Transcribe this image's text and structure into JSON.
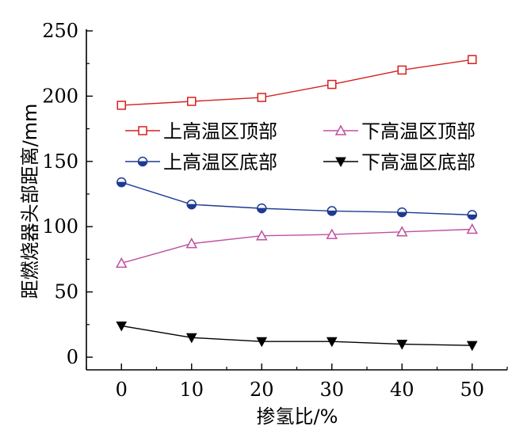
{
  "chart_data": {
    "type": "line",
    "title": "",
    "xlabel": "掺氢比/%",
    "ylabel": "距燃烧器头部距离/mm",
    "x": [
      0,
      10,
      20,
      30,
      40,
      50
    ],
    "xlim": [
      -5,
      55
    ],
    "ylim": [
      0,
      250
    ],
    "xticks": [
      0,
      10,
      20,
      30,
      40,
      50
    ],
    "yticks": [
      0,
      50,
      100,
      150,
      200,
      250
    ],
    "grid": false,
    "legend_position": "top-center",
    "series": [
      {
        "name": "上高温区顶部",
        "values": [
          193,
          196,
          199,
          209,
          220,
          228
        ],
        "color": "#d62020",
        "marker": "square-open"
      },
      {
        "name": "下高温区顶部",
        "values": [
          72,
          87,
          93,
          94,
          96,
          98
        ],
        "color": "#c0509e",
        "marker": "triangle-up-open"
      },
      {
        "name": "上高温区底部",
        "values": [
          134,
          117,
          114,
          112,
          111,
          109
        ],
        "color": "#1f3a93",
        "marker": "circle-half"
      },
      {
        "name": "下高温区底部",
        "values": [
          24,
          15,
          12,
          12,
          10,
          9
        ],
        "color": "#000000",
        "marker": "triangle-down-filled"
      }
    ]
  }
}
